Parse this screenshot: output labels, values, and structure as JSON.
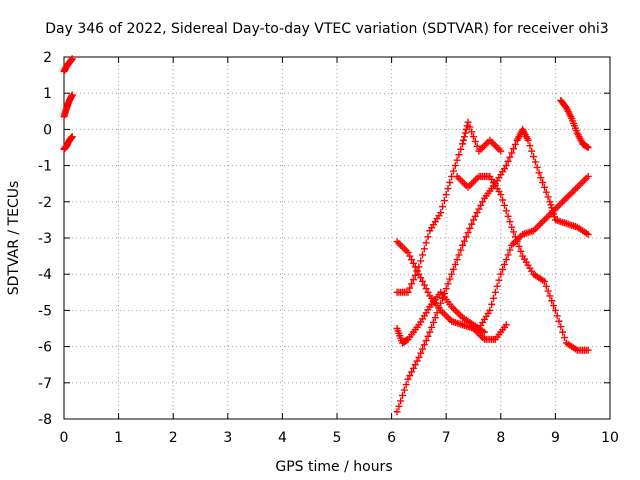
{
  "chart_data": {
    "type": "scatter",
    "title": "Day 346 of 2022, Sidereal Day-to-day VTEC variation (SDTVAR) for receiver ohi3",
    "xlabel": "GPS time / hours",
    "ylabel": "SDTVAR / TECUs",
    "xlim": [
      0,
      10
    ],
    "ylim": [
      -8,
      2
    ],
    "xticks": [
      "0",
      "1",
      "2",
      "3",
      "4",
      "5",
      "6",
      "7",
      "8",
      "9",
      "10"
    ],
    "yticks": [
      "2",
      "1",
      "0",
      "-1",
      "-2",
      "-3",
      "-4",
      "-5",
      "-6",
      "-7",
      "-8"
    ],
    "grid": true,
    "marker": "+",
    "color": "#ff0000",
    "series": [
      {
        "values": [
          [
            0.0,
            1.6
          ],
          [
            0.05,
            1.75
          ],
          [
            0.1,
            1.85
          ],
          [
            0.15,
            1.95
          ]
        ]
      },
      {
        "values": [
          [
            0.0,
            0.35
          ],
          [
            0.05,
            0.6
          ],
          [
            0.1,
            0.8
          ],
          [
            0.15,
            0.95
          ]
        ]
      },
      {
        "values": [
          [
            0.0,
            -0.55
          ],
          [
            0.05,
            -0.45
          ],
          [
            0.1,
            -0.3
          ],
          [
            0.15,
            -0.2
          ]
        ]
      },
      {
        "values": [
          [
            6.1,
            -3.1
          ],
          [
            6.3,
            -3.4
          ],
          [
            6.5,
            -4.0
          ],
          [
            6.7,
            -4.6
          ],
          [
            6.9,
            -5.0
          ],
          [
            7.1,
            -5.3
          ],
          [
            7.3,
            -5.4
          ],
          [
            7.5,
            -5.5
          ],
          [
            7.7,
            -5.8
          ],
          [
            7.9,
            -5.8
          ],
          [
            8.1,
            -5.4
          ]
        ]
      },
      {
        "values": [
          [
            6.1,
            -5.5
          ],
          [
            6.2,
            -5.9
          ],
          [
            6.3,
            -5.8
          ],
          [
            6.5,
            -5.4
          ],
          [
            6.7,
            -4.9
          ],
          [
            6.9,
            -4.5
          ],
          [
            7.1,
            -4.9
          ],
          [
            7.3,
            -5.2
          ],
          [
            7.5,
            -5.4
          ],
          [
            7.7,
            -5.6
          ]
        ]
      },
      {
        "values": [
          [
            6.1,
            -7.8
          ],
          [
            6.3,
            -6.9
          ],
          [
            6.5,
            -6.3
          ],
          [
            6.7,
            -5.6
          ],
          [
            6.9,
            -4.8
          ],
          [
            7.1,
            -4.0
          ],
          [
            7.3,
            -3.2
          ],
          [
            7.5,
            -2.5
          ],
          [
            7.7,
            -1.9
          ],
          [
            7.9,
            -1.5
          ],
          [
            8.1,
            -1.0
          ],
          [
            8.3,
            -0.3
          ],
          [
            8.4,
            0.0
          ],
          [
            8.5,
            -0.3
          ],
          [
            8.7,
            -1.2
          ],
          [
            8.9,
            -2.0
          ],
          [
            9.0,
            -2.5
          ],
          [
            9.2,
            -2.6
          ],
          [
            9.4,
            -2.7
          ],
          [
            9.6,
            -2.9
          ]
        ]
      },
      {
        "values": [
          [
            6.1,
            -4.5
          ],
          [
            6.3,
            -4.5
          ],
          [
            6.5,
            -3.8
          ],
          [
            6.7,
            -2.8
          ],
          [
            6.9,
            -2.3
          ],
          [
            7.1,
            -1.3
          ],
          [
            7.3,
            -0.4
          ],
          [
            7.4,
            0.2
          ],
          [
            7.6,
            -0.6
          ],
          [
            7.8,
            -0.3
          ],
          [
            8.0,
            -0.6
          ]
        ]
      },
      {
        "values": [
          [
            7.2,
            -1.3
          ],
          [
            7.4,
            -1.6
          ],
          [
            7.6,
            -1.3
          ],
          [
            7.8,
            -1.3
          ],
          [
            8.0,
            -1.8
          ],
          [
            8.2,
            -2.7
          ],
          [
            8.4,
            -3.5
          ],
          [
            8.6,
            -4.0
          ],
          [
            8.8,
            -4.2
          ],
          [
            9.0,
            -5.0
          ],
          [
            9.2,
            -5.9
          ],
          [
            9.4,
            -6.1
          ],
          [
            9.6,
            -6.1
          ]
        ]
      },
      {
        "values": [
          [
            7.6,
            -5.5
          ],
          [
            7.8,
            -5.0
          ],
          [
            8.0,
            -4.0
          ],
          [
            8.2,
            -3.2
          ],
          [
            8.4,
            -2.9
          ],
          [
            8.6,
            -2.8
          ],
          [
            8.8,
            -2.5
          ],
          [
            9.0,
            -2.2
          ],
          [
            9.2,
            -1.9
          ],
          [
            9.4,
            -1.6
          ],
          [
            9.6,
            -1.3
          ]
        ]
      },
      {
        "values": [
          [
            9.1,
            0.8
          ],
          [
            9.2,
            0.6
          ],
          [
            9.3,
            0.3
          ],
          [
            9.4,
            -0.1
          ],
          [
            9.5,
            -0.4
          ],
          [
            9.6,
            -0.5
          ]
        ]
      }
    ]
  }
}
